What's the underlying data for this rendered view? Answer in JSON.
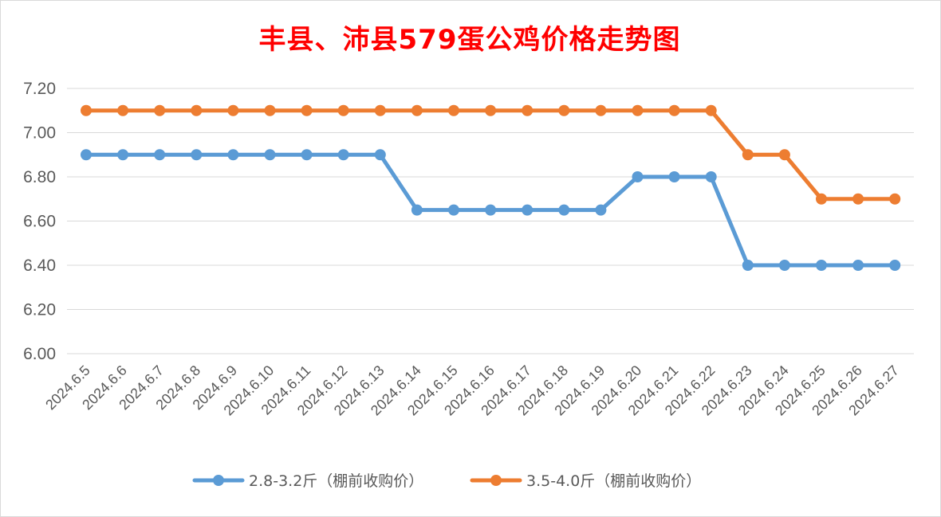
{
  "chart_data": {
    "type": "line",
    "title": "丰县、沛县579蛋公鸡价格走势图",
    "categories": [
      "2024.6.5",
      "2024.6.6",
      "2024.6.7",
      "2024.6.8",
      "2024.6.9",
      "2024.6.10",
      "2024.6.11",
      "2024.6.12",
      "2024.6.13",
      "2024.6.14",
      "2024.6.15",
      "2024.6.16",
      "2024.6.17",
      "2024.6.18",
      "2024.6.19",
      "2024.6.20",
      "2024.6.21",
      "2024.6.22",
      "2024.6.23",
      "2024.6.24",
      "2024.6.25",
      "2024.6.26",
      "2024.6.27"
    ],
    "series": [
      {
        "name": "2.8-3.2斤（棚前收购价）",
        "color": "#5b9bd5",
        "values": [
          6.9,
          6.9,
          6.9,
          6.9,
          6.9,
          6.9,
          6.9,
          6.9,
          6.9,
          6.65,
          6.65,
          6.65,
          6.65,
          6.65,
          6.65,
          6.8,
          6.8,
          6.8,
          6.4,
          6.4,
          6.4,
          6.4,
          6.4
        ]
      },
      {
        "name": "3.5-4.0斤（棚前收购价）",
        "color": "#ed7d31",
        "values": [
          7.1,
          7.1,
          7.1,
          7.1,
          7.1,
          7.1,
          7.1,
          7.1,
          7.1,
          7.1,
          7.1,
          7.1,
          7.1,
          7.1,
          7.1,
          7.1,
          7.1,
          7.1,
          6.9,
          6.9,
          6.7,
          6.7,
          6.7
        ]
      }
    ],
    "yticks": [
      "6.00",
      "6.20",
      "6.40",
      "6.60",
      "6.80",
      "7.00",
      "7.20"
    ],
    "ylim": [
      6.0,
      7.2
    ],
    "grid": true,
    "legend_position": "bottom",
    "xlabel": "",
    "ylabel": ""
  }
}
